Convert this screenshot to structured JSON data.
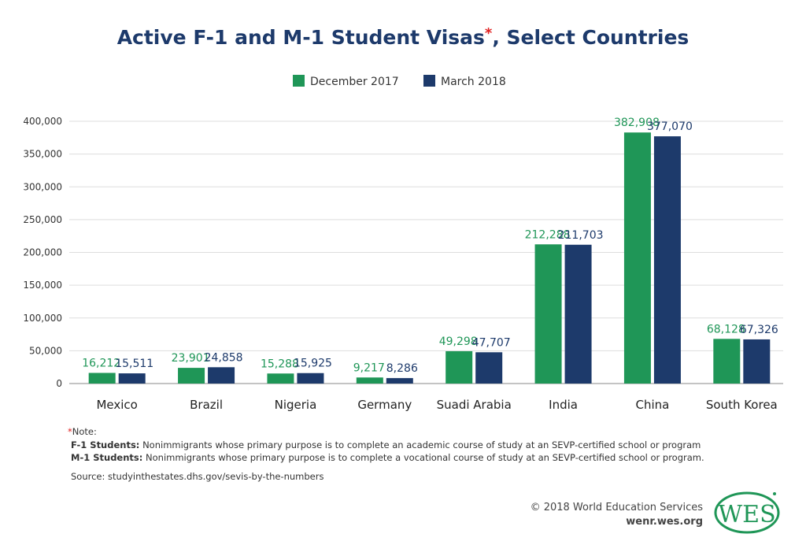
{
  "chart_data": {
    "type": "bar",
    "title": "Active F-1 and M-1 Student Visas",
    "title_asterisk": "*",
    "title_suffix": ", Select Countries",
    "categories": [
      "Mexico",
      "Brazil",
      "Nigeria",
      "Germany",
      "Suadi Arabia",
      "India",
      "China",
      "South Korea"
    ],
    "series": [
      {
        "name": "December 2017",
        "color": "#1f9657",
        "values": [
          16212,
          23901,
          15288,
          9217,
          49298,
          212288,
          382908,
          68128
        ],
        "labels": [
          "16,212",
          "23,901",
          "15,288",
          "9,217",
          "49,298",
          "212,288",
          "382,908",
          "68,128"
        ]
      },
      {
        "name": "March 2018",
        "color": "#1d3a6b",
        "values": [
          15511,
          24858,
          15925,
          8286,
          47707,
          211703,
          377070,
          67326
        ],
        "labels": [
          "15,511",
          "24,858",
          "15,925",
          "8,286",
          "47,707",
          "211,703",
          "377,070",
          "67,326"
        ]
      }
    ],
    "ylim": [
      0,
      400000
    ],
    "yticks": [
      0,
      50000,
      100000,
      150000,
      200000,
      250000,
      300000,
      350000,
      400000
    ],
    "ytick_labels": [
      "0",
      "50,000",
      "100,000",
      "150,000",
      "200,000",
      "250,000",
      "300,000",
      "350,000",
      "400,000"
    ],
    "grid": true,
    "legend_position": "top-center",
    "xlabel": "",
    "ylabel": ""
  },
  "notes": {
    "asterisk": "*",
    "heading": "Note:",
    "f1_term": "F-1 Students:",
    "f1_text": " Nonimmigrants whose primary purpose is to complete an academic course of study at an SEVP-certified school or program",
    "m1_term": "M-1 Students:",
    "m1_text": " Nonimmigrants whose primary purpose is to complete a vocational course of study at an SEVP-certified school or program.",
    "source": "Source: studyinthestates.dhs.gov/sevis-by-the-numbers"
  },
  "footer": {
    "copyright": "© 2018 World Education Services",
    "site": "wenr.wes.org",
    "logo_text": "WES"
  }
}
